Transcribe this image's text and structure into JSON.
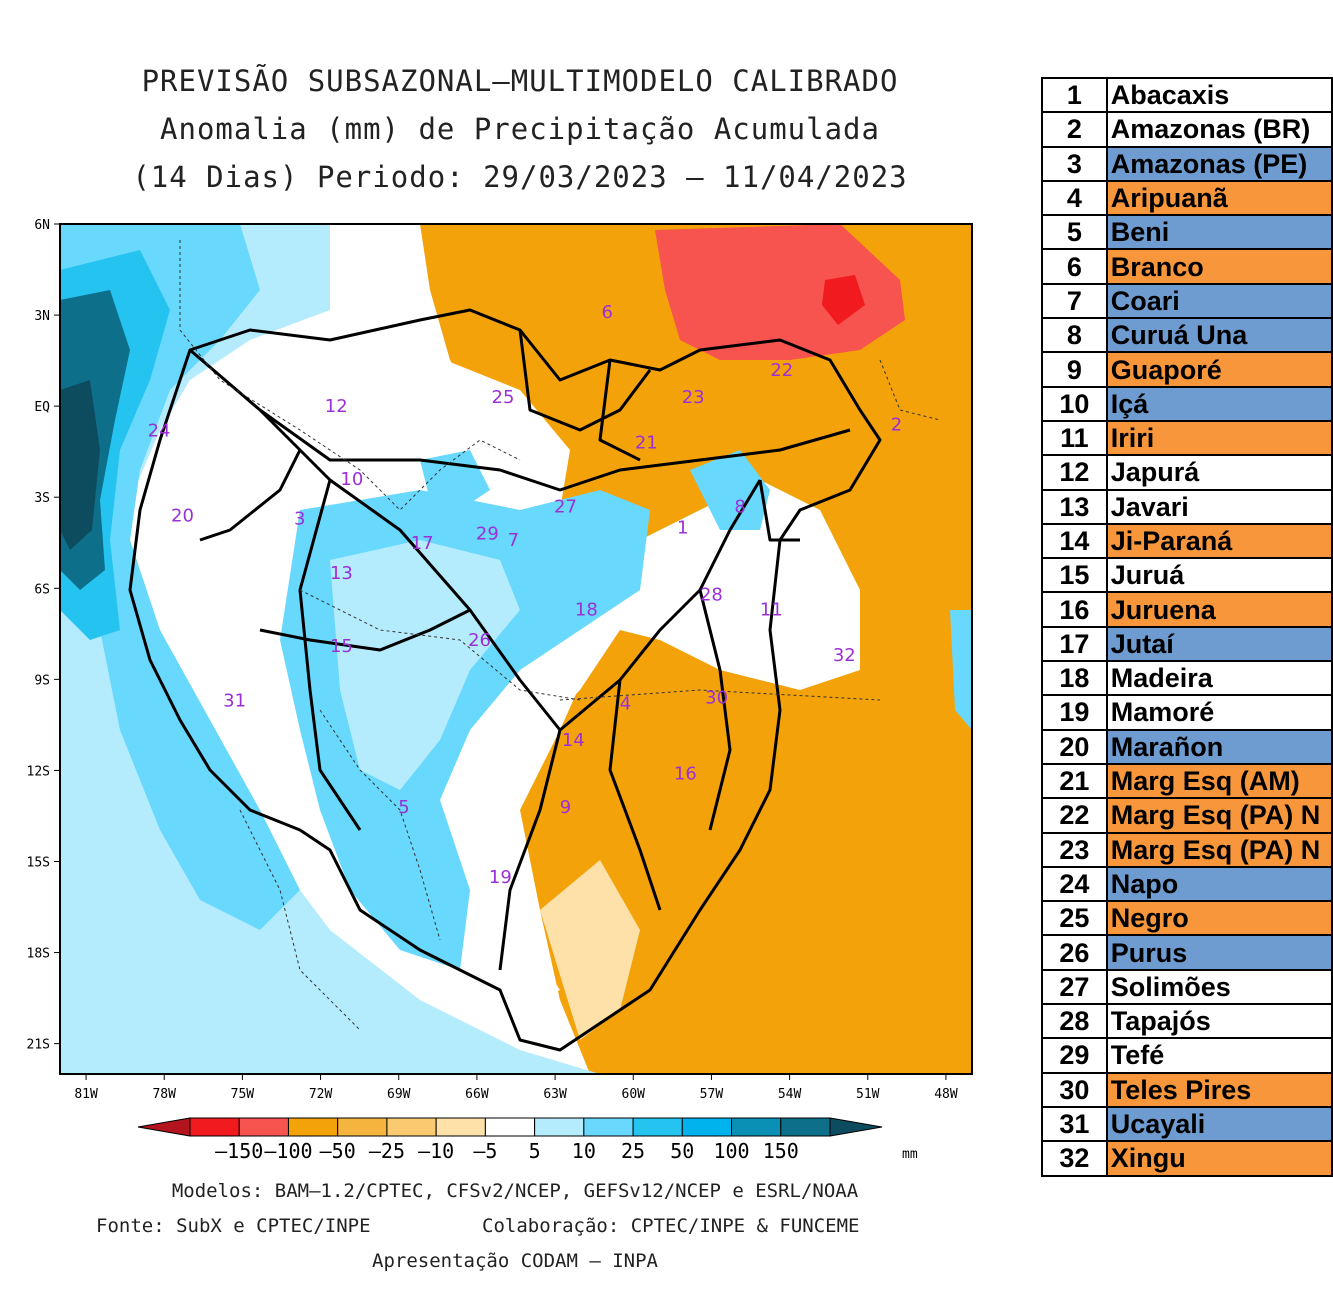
{
  "title": {
    "line1": "PREVISÃO SUBSAZONAL–MULTIMODELO CALIBRADO",
    "line2": "Anomalia (mm) de Precipitação Acumulada",
    "line3": "(14 Dias) Periodo: 29/03/2023 – 11/04/2023"
  },
  "map": {
    "lat_labels": [
      "6N",
      "3N",
      "EQ",
      "3S",
      "6S",
      "9S",
      "12S",
      "15S",
      "18S",
      "21S"
    ],
    "lon_labels": [
      "81W",
      "78W",
      "75W",
      "72W",
      "69W",
      "66W",
      "63W",
      "60W",
      "57W",
      "54W",
      "51W",
      "48W"
    ],
    "basin_markers": [
      {
        "n": "1",
        "lon": -58.1,
        "lat": -4.2
      },
      {
        "n": "2",
        "lon": -49.9,
        "lat": -0.8
      },
      {
        "n": "3",
        "lon": -72.8,
        "lat": -3.9
      },
      {
        "n": "4",
        "lon": -60.3,
        "lat": -10.0
      },
      {
        "n": "5",
        "lon": -68.8,
        "lat": -13.4
      },
      {
        "n": "6",
        "lon": -61.0,
        "lat": 2.9
      },
      {
        "n": "7",
        "lon": -64.6,
        "lat": -4.6
      },
      {
        "n": "8",
        "lon": -55.9,
        "lat": -3.5
      },
      {
        "n": "9",
        "lon": -62.6,
        "lat": -13.4
      },
      {
        "n": "10",
        "lon": -70.8,
        "lat": -2.6
      },
      {
        "n": "11",
        "lon": -54.7,
        "lat": -6.9
      },
      {
        "n": "12",
        "lon": -71.4,
        "lat": -0.2
      },
      {
        "n": "13",
        "lon": -71.2,
        "lat": -5.7
      },
      {
        "n": "14",
        "lon": -62.3,
        "lat": -11.2
      },
      {
        "n": "15",
        "lon": -71.2,
        "lat": -8.1
      },
      {
        "n": "16",
        "lon": -58.0,
        "lat": -12.3
      },
      {
        "n": "17",
        "lon": -68.1,
        "lat": -4.7
      },
      {
        "n": "18",
        "lon": -61.8,
        "lat": -6.9
      },
      {
        "n": "19",
        "lon": -65.1,
        "lat": -15.7
      },
      {
        "n": "20",
        "lon": -77.3,
        "lat": -3.8
      },
      {
        "n": "21",
        "lon": -59.5,
        "lat": -1.4
      },
      {
        "n": "22",
        "lon": -54.3,
        "lat": 1.0
      },
      {
        "n": "23",
        "lon": -57.7,
        "lat": 0.1
      },
      {
        "n": "24",
        "lon": -78.2,
        "lat": -1.0
      },
      {
        "n": "25",
        "lon": -65.0,
        "lat": 0.1
      },
      {
        "n": "26",
        "lon": -65.9,
        "lat": -7.9
      },
      {
        "n": "27",
        "lon": -62.6,
        "lat": -3.5
      },
      {
        "n": "28",
        "lon": -57.0,
        "lat": -6.4
      },
      {
        "n": "29",
        "lon": -65.6,
        "lat": -4.4
      },
      {
        "n": "30",
        "lon": -56.8,
        "lat": -9.8
      },
      {
        "n": "31",
        "lon": -75.3,
        "lat": -9.9
      },
      {
        "n": "32",
        "lon": -51.9,
        "lat": -8.4
      }
    ]
  },
  "colorbar": {
    "labels": [
      "–150",
      "–100",
      "–50",
      "–25",
      "–10",
      "–5",
      "5",
      "10",
      "25",
      "50",
      "100",
      "150"
    ],
    "unit": "mm",
    "colors": [
      "#b4141e",
      "#f11a1f",
      "#f7534f",
      "#f4a209",
      "#f5b43d",
      "#f9ca6f",
      "#fde1a8",
      "#ffffff",
      "#b5ecfd",
      "#68d8fc",
      "#25c4f0",
      "#01b3ed",
      "#0a8fb5",
      "#0e6f8b",
      "#0d4c5e"
    ]
  },
  "footer": {
    "models": "Modelos: BAM–1.2/CPTEC, CFSv2/NCEP, GEFSv12/NCEP e ESRL/NOAA",
    "source": "Fonte: SubX e CPTEC/INPE",
    "collab": "Colaboração: CPTEC/INPE & FUNCEME",
    "presentation": "Apresentação CODAM – INPA"
  },
  "basins": [
    {
      "n": "1",
      "name": "Abacaxis",
      "fill": "white"
    },
    {
      "n": "2",
      "name": "Amazonas (BR)",
      "fill": "white"
    },
    {
      "n": "3",
      "name": "Amazonas (PE)",
      "fill": "blue"
    },
    {
      "n": "4",
      "name": "Aripuanã",
      "fill": "orange"
    },
    {
      "n": "5",
      "name": "Beni",
      "fill": "blue"
    },
    {
      "n": "6",
      "name": "Branco",
      "fill": "orange"
    },
    {
      "n": "7",
      "name": "Coari",
      "fill": "blue"
    },
    {
      "n": "8",
      "name": "Curuá Una",
      "fill": "blue"
    },
    {
      "n": "9",
      "name": "Guaporé",
      "fill": "orange"
    },
    {
      "n": "10",
      "name": "Içá",
      "fill": "blue"
    },
    {
      "n": "11",
      "name": "Iriri",
      "fill": "orange"
    },
    {
      "n": "12",
      "name": "Japurá",
      "fill": "white"
    },
    {
      "n": "13",
      "name": "Javari",
      "fill": "white"
    },
    {
      "n": "14",
      "name": "Ji-Paraná",
      "fill": "orange"
    },
    {
      "n": "15",
      "name": "Juruá",
      "fill": "white"
    },
    {
      "n": "16",
      "name": "Juruena",
      "fill": "orange"
    },
    {
      "n": "17",
      "name": "Jutaí",
      "fill": "blue"
    },
    {
      "n": "18",
      "name": "Madeira",
      "fill": "white"
    },
    {
      "n": "19",
      "name": "Mamoré",
      "fill": "white"
    },
    {
      "n": "20",
      "name": "Marañon",
      "fill": "blue"
    },
    {
      "n": "21",
      "name": "Marg Esq (AM)",
      "fill": "orange"
    },
    {
      "n": "22",
      "name": "Marg Esq (PA) N",
      "fill": "orange"
    },
    {
      "n": "23",
      "name": "Marg Esq (PA) N",
      "fill": "orange"
    },
    {
      "n": "24",
      "name": "Napo",
      "fill": "blue"
    },
    {
      "n": "25",
      "name": "Negro",
      "fill": "orange"
    },
    {
      "n": "26",
      "name": "Purus",
      "fill": "blue"
    },
    {
      "n": "27",
      "name": "Solimões",
      "fill": "white"
    },
    {
      "n": "28",
      "name": "Tapajós",
      "fill": "white"
    },
    {
      "n": "29",
      "name": "Tefé",
      "fill": "white"
    },
    {
      "n": "30",
      "name": "Teles Pires",
      "fill": "orange"
    },
    {
      "n": "31",
      "name": "Ucayali",
      "fill": "blue"
    },
    {
      "n": "32",
      "name": "Xingu",
      "fill": "orange"
    }
  ]
}
